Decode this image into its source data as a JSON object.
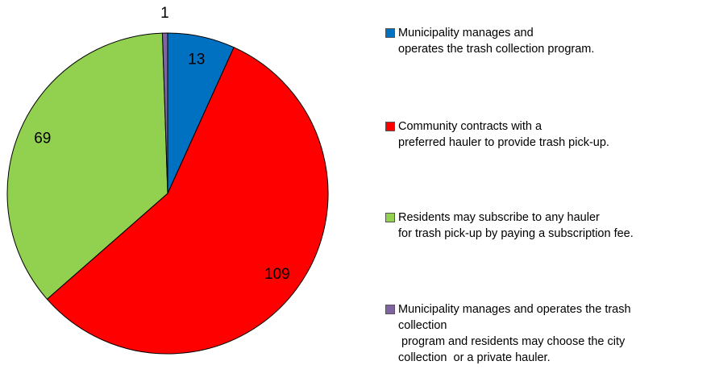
{
  "chart_data": {
    "type": "pie",
    "categories": [
      "Municipality manages and\noperates the trash collection program.",
      "Community contracts with a\npreferred hauler to provide trash pick-up.",
      "Residents may subscribe to any hauler\nfor trash pick-up by paying a subscription fee.",
      "Municipality manages and operates the trash\ncollection\n program and residents may choose the city\ncollection  or a private hauler."
    ],
    "values": [
      13,
      109,
      69,
      1
    ],
    "colors": [
      "#0070c0",
      "#ff0000",
      "#92d050",
      "#8064a2"
    ],
    "legend": "right"
  }
}
